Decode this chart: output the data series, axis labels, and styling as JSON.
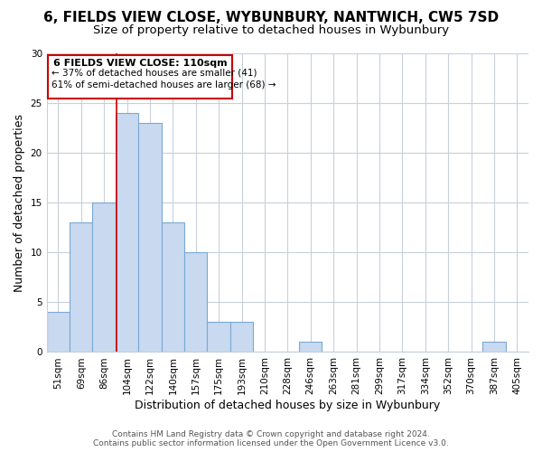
{
  "title": "6, FIELDS VIEW CLOSE, WYBUNBURY, NANTWICH, CW5 7SD",
  "subtitle": "Size of property relative to detached houses in Wybunbury",
  "xlabel": "Distribution of detached houses by size in Wybunbury",
  "ylabel": "Number of detached properties",
  "bar_labels": [
    "51sqm",
    "69sqm",
    "86sqm",
    "104sqm",
    "122sqm",
    "140sqm",
    "157sqm",
    "175sqm",
    "193sqm",
    "210sqm",
    "228sqm",
    "246sqm",
    "263sqm",
    "281sqm",
    "299sqm",
    "317sqm",
    "334sqm",
    "352sqm",
    "370sqm",
    "387sqm",
    "405sqm"
  ],
  "bar_values": [
    4,
    13,
    15,
    24,
    23,
    13,
    10,
    3,
    3,
    0,
    0,
    1,
    0,
    0,
    0,
    0,
    0,
    0,
    0,
    1,
    0
  ],
  "bar_color": "#c8d9f0",
  "bar_edge_color": "#7aa8d4",
  "vline_x": 2.55,
  "vline_color": "#cc0000",
  "annotation_title": "6 FIELDS VIEW CLOSE: 110sqm",
  "annotation_line1": "← 37% of detached houses are smaller (41)",
  "annotation_line2": "61% of semi-detached houses are larger (68) →",
  "annotation_box_color": "#ffffff",
  "annotation_box_edge": "#cc0000",
  "ylim": [
    0,
    30
  ],
  "yticks": [
    0,
    5,
    10,
    15,
    20,
    25,
    30
  ],
  "footer1": "Contains HM Land Registry data © Crown copyright and database right 2024.",
  "footer2": "Contains public sector information licensed under the Open Government Licence v3.0.",
  "background_color": "#ffffff",
  "grid_color": "#c8d0dc",
  "title_fontsize": 11,
  "subtitle_fontsize": 9.5,
  "axis_label_fontsize": 9,
  "tick_fontsize": 7.5,
  "footer_fontsize": 6.5
}
